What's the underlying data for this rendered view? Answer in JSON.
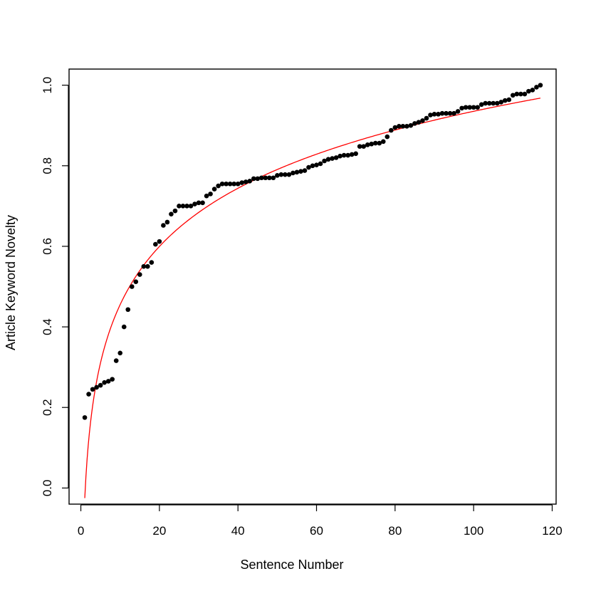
{
  "chart_data": {
    "type": "scatter",
    "title": "",
    "xlabel": "Sentence Number",
    "ylabel": "Article Keyword Novelty",
    "xlim": [
      -3,
      121
    ],
    "ylim": [
      -0.04,
      1.04
    ],
    "x_ticks": [
      0,
      20,
      40,
      60,
      80,
      100,
      120
    ],
    "y_ticks": [
      0.0,
      0.2,
      0.4,
      0.6,
      0.8,
      1.0
    ],
    "x_tick_labels": [
      "0",
      "20",
      "40",
      "60",
      "80",
      "100",
      "120"
    ],
    "y_tick_labels": [
      "0.0",
      "0.2",
      "0.4",
      "0.6",
      "0.8",
      "1.0"
    ],
    "grid": false,
    "legend": "none",
    "series": [
      {
        "kind": "points",
        "color": "#000000",
        "x": [
          1,
          2,
          3,
          4,
          5,
          6,
          7,
          8,
          9,
          10,
          11,
          12,
          13,
          14,
          15,
          16,
          17,
          18,
          19,
          20,
          21,
          22,
          23,
          24,
          25,
          26,
          27,
          28,
          29,
          30,
          31,
          32,
          33,
          34,
          35,
          36,
          37,
          38,
          39,
          40,
          41,
          42,
          43,
          44,
          45,
          46,
          47,
          48,
          49,
          50,
          51,
          52,
          53,
          54,
          55,
          56,
          57,
          58,
          59,
          60,
          61,
          62,
          63,
          64,
          65,
          66,
          67,
          68,
          69,
          70,
          71,
          72,
          73,
          74,
          75,
          76,
          77,
          78,
          79,
          80,
          81,
          82,
          83,
          84,
          85,
          86,
          87,
          88,
          89,
          90,
          91,
          92,
          93,
          94,
          95,
          96,
          97,
          98,
          99,
          100,
          101,
          102,
          103,
          104,
          105,
          106,
          107,
          108,
          109,
          110,
          111,
          112,
          113,
          114,
          115,
          116,
          117
        ],
        "y": [
          0.175,
          0.233,
          0.245,
          0.25,
          0.255,
          0.262,
          0.265,
          0.27,
          0.316,
          0.335,
          0.4,
          0.443,
          0.5,
          0.512,
          0.53,
          0.55,
          0.55,
          0.56,
          0.605,
          0.612,
          0.652,
          0.66,
          0.68,
          0.688,
          0.7,
          0.7,
          0.7,
          0.7,
          0.705,
          0.708,
          0.708,
          0.725,
          0.73,
          0.742,
          0.75,
          0.755,
          0.755,
          0.755,
          0.755,
          0.755,
          0.758,
          0.76,
          0.762,
          0.768,
          0.768,
          0.77,
          0.77,
          0.77,
          0.77,
          0.776,
          0.778,
          0.778,
          0.778,
          0.782,
          0.784,
          0.786,
          0.788,
          0.796,
          0.8,
          0.802,
          0.805,
          0.812,
          0.816,
          0.818,
          0.82,
          0.824,
          0.826,
          0.826,
          0.828,
          0.83,
          0.848,
          0.848,
          0.852,
          0.854,
          0.856,
          0.856,
          0.86,
          0.872,
          0.888,
          0.895,
          0.898,
          0.898,
          0.898,
          0.9,
          0.905,
          0.908,
          0.912,
          0.918,
          0.926,
          0.928,
          0.928,
          0.93,
          0.93,
          0.93,
          0.93,
          0.935,
          0.943,
          0.945,
          0.945,
          0.945,
          0.945,
          0.952,
          0.955,
          0.955,
          0.955,
          0.955,
          0.958,
          0.962,
          0.964,
          0.975,
          0.978,
          0.978,
          0.978,
          0.985,
          0.988,
          0.995,
          1.0
        ]
      },
      {
        "kind": "fitted-curve",
        "color": "#ff0000",
        "model": "a + b*ln(x)",
        "a": -0.025,
        "b": 0.2085,
        "x_range": [
          1,
          117
        ]
      }
    ]
  }
}
